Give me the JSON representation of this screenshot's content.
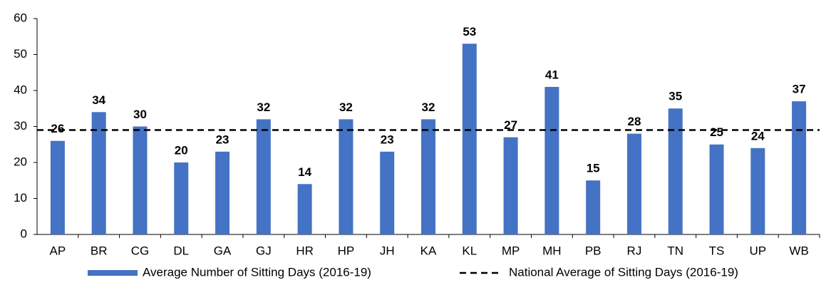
{
  "chart_data": {
    "type": "bar",
    "categories": [
      "AP",
      "BR",
      "CG",
      "DL",
      "GA",
      "GJ",
      "HR",
      "HP",
      "JH",
      "KA",
      "KL",
      "MP",
      "MH",
      "PB",
      "RJ",
      "TN",
      "TS",
      "UP",
      "WB"
    ],
    "series": [
      {
        "name": "Average Number of Sitting Days (2016-19)",
        "color": "#4472c4",
        "values": [
          26,
          34,
          30,
          20,
          23,
          32,
          14,
          32,
          23,
          32,
          53,
          27,
          41,
          15,
          28,
          35,
          25,
          24,
          37
        ]
      },
      {
        "name": "National Average of Sitting Days (2016-19)",
        "color": "#000000",
        "value": 29
      }
    ],
    "ylim": [
      0,
      60
    ],
    "yticks": [
      0,
      10,
      20,
      30,
      40,
      50,
      60
    ],
    "grid": false
  }
}
